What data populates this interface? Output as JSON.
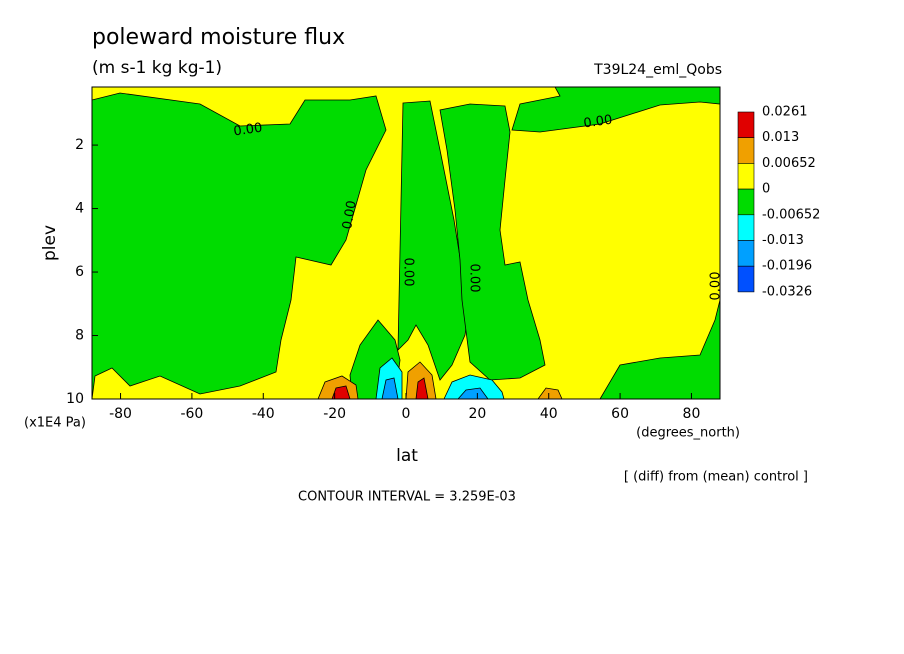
{
  "chart_data": {
    "type": "contour",
    "title": "poleward moisture flux",
    "subtitle": "(m s-1 kg kg-1)",
    "run_label": "T39L24_eml_Qobs",
    "x_label": "lat",
    "x_unit": "(degrees_north)",
    "y_label": "plev",
    "y_unit": "(x1E4 Pa)",
    "note": "[ (diff) from (mean) control ]",
    "contour_interval": "CONTOUR INTERVAL = 3.259E-03",
    "xlim": [
      -88,
      88
    ],
    "xticks": [
      -80,
      -60,
      -40,
      -20,
      0,
      20,
      40,
      60,
      80
    ],
    "ylim": [
      10,
      0.17
    ],
    "yticks": [
      2,
      4,
      6,
      8,
      10
    ],
    "contour_labels": [
      {
        "value": 0,
        "label": "0.00"
      },
      {
        "value": 0,
        "label": "0.00"
      },
      {
        "value": 0,
        "label": "0.00"
      },
      {
        "value": 0,
        "label": "0.00"
      },
      {
        "value": 0,
        "label": "0.00"
      },
      {
        "value": 0,
        "label": "0.00"
      }
    ],
    "colorbar": {
      "levels": [
        0.0261,
        0.013,
        0.00652,
        0,
        -0.00652,
        -0.013,
        -0.0196,
        -0.0326
      ],
      "colors": [
        "#e00000",
        "#f0a000",
        "#ffff00",
        "#00dc00",
        "#00ffff",
        "#00a0ff",
        "#0050ff"
      ]
    }
  }
}
